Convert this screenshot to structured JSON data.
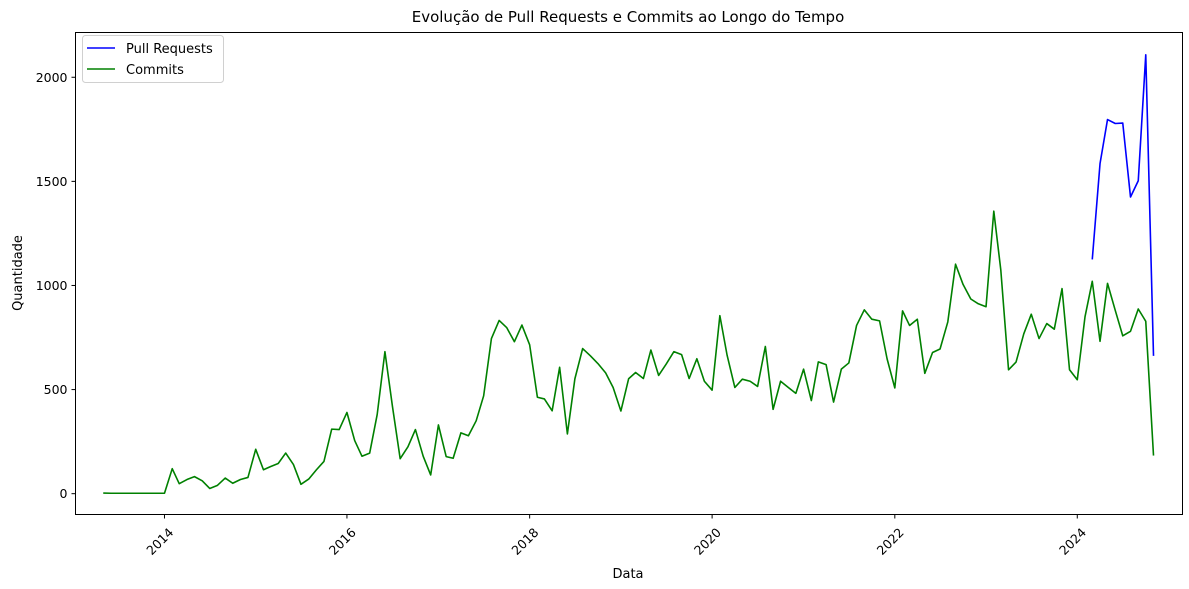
{
  "chart_data": {
    "type": "line",
    "title": "Evolução de Pull Requests e Commits ao Longo do Tempo",
    "xlabel": "Data",
    "ylabel": "Quantidade",
    "x_axis": {
      "type": "date",
      "range": [
        "2013-01-10",
        "2025-02-25"
      ],
      "ticks": [
        "2014-01-01",
        "2016-01-01",
        "2018-01-01",
        "2020-01-01",
        "2022-01-01",
        "2024-01-01"
      ],
      "tick_labels": [
        "2014",
        "2016",
        "2018",
        "2020",
        "2022",
        "2024"
      ],
      "tick_rotation": 45
    },
    "y_axis": {
      "range": [
        -100,
        2215
      ],
      "ticks": [
        0,
        500,
        1000,
        1500,
        2000
      ],
      "tick_labels": [
        "0",
        "500",
        "1000",
        "1500",
        "2000"
      ]
    },
    "grid": false,
    "legend": {
      "position": "top-left"
    },
    "series": [
      {
        "name": "Pull Requests",
        "color": "#0000ff",
        "points": [
          [
            "2024-03-01",
            1125
          ],
          [
            "2024-04-01",
            1585
          ],
          [
            "2024-05-01",
            1797
          ],
          [
            "2024-06-01",
            1778
          ],
          [
            "2024-07-01",
            1780
          ],
          [
            "2024-08-01",
            1425
          ],
          [
            "2024-09-01",
            1503
          ],
          [
            "2024-10-01",
            2108
          ],
          [
            "2024-11-01",
            662
          ]
        ]
      },
      {
        "name": "Commits",
        "color": "#008000",
        "points": [
          [
            "2013-05-01",
            3
          ],
          [
            "2013-06-01",
            2
          ],
          [
            "2013-07-01",
            2
          ],
          [
            "2013-08-01",
            2
          ],
          [
            "2013-09-01",
            2
          ],
          [
            "2013-10-01",
            2
          ],
          [
            "2013-11-01",
            2
          ],
          [
            "2013-12-01",
            2
          ],
          [
            "2014-01-01",
            2
          ],
          [
            "2014-02-01",
            120
          ],
          [
            "2014-03-01",
            48
          ],
          [
            "2014-04-01",
            68
          ],
          [
            "2014-05-01",
            82
          ],
          [
            "2014-06-01",
            62
          ],
          [
            "2014-07-01",
            25
          ],
          [
            "2014-08-01",
            40
          ],
          [
            "2014-09-01",
            75
          ],
          [
            "2014-10-01",
            50
          ],
          [
            "2014-11-01",
            68
          ],
          [
            "2014-12-01",
            78
          ],
          [
            "2015-01-01",
            213
          ],
          [
            "2015-02-01",
            115
          ],
          [
            "2015-03-01",
            130
          ],
          [
            "2015-04-01",
            145
          ],
          [
            "2015-05-01",
            195
          ],
          [
            "2015-06-01",
            140
          ],
          [
            "2015-07-01",
            45
          ],
          [
            "2015-08-01",
            70
          ],
          [
            "2015-09-01",
            115
          ],
          [
            "2015-10-01",
            155
          ],
          [
            "2015-11-01",
            310
          ],
          [
            "2015-12-01",
            308
          ],
          [
            "2016-01-01",
            390
          ],
          [
            "2016-02-01",
            255
          ],
          [
            "2016-03-01",
            180
          ],
          [
            "2016-04-01",
            195
          ],
          [
            "2016-05-01",
            380
          ],
          [
            "2016-06-01",
            682
          ],
          [
            "2016-07-01",
            420
          ],
          [
            "2016-08-01",
            168
          ],
          [
            "2016-09-01",
            225
          ],
          [
            "2016-10-01",
            308
          ],
          [
            "2016-11-01",
            180
          ],
          [
            "2016-12-01",
            90
          ],
          [
            "2017-01-01",
            330
          ],
          [
            "2017-02-01",
            178
          ],
          [
            "2017-03-01",
            170
          ],
          [
            "2017-04-01",
            292
          ],
          [
            "2017-05-01",
            278
          ],
          [
            "2017-06-01",
            350
          ],
          [
            "2017-07-01",
            470
          ],
          [
            "2017-08-01",
            745
          ],
          [
            "2017-09-01",
            832
          ],
          [
            "2017-10-01",
            798
          ],
          [
            "2017-11-01",
            730
          ],
          [
            "2017-12-01",
            810
          ],
          [
            "2018-01-01",
            715
          ],
          [
            "2018-02-01",
            463
          ],
          [
            "2018-03-01",
            455
          ],
          [
            "2018-04-01",
            398
          ],
          [
            "2018-05-01",
            607
          ],
          [
            "2018-06-01",
            287
          ],
          [
            "2018-07-01",
            552
          ],
          [
            "2018-08-01",
            697
          ],
          [
            "2018-09-01",
            662
          ],
          [
            "2018-10-01",
            625
          ],
          [
            "2018-11-01",
            580
          ],
          [
            "2018-12-01",
            510
          ],
          [
            "2019-01-01",
            397
          ],
          [
            "2019-02-01",
            552
          ],
          [
            "2019-03-01",
            582
          ],
          [
            "2019-04-01",
            553
          ],
          [
            "2019-05-01",
            690
          ],
          [
            "2019-06-01",
            568
          ],
          [
            "2019-07-01",
            622
          ],
          [
            "2019-08-01",
            682
          ],
          [
            "2019-09-01",
            668
          ],
          [
            "2019-10-01",
            553
          ],
          [
            "2019-11-01",
            648
          ],
          [
            "2019-12-01",
            540
          ],
          [
            "2020-01-01",
            497
          ],
          [
            "2020-02-01",
            855
          ],
          [
            "2020-03-01",
            665
          ],
          [
            "2020-04-01",
            510
          ],
          [
            "2020-05-01",
            550
          ],
          [
            "2020-06-01",
            540
          ],
          [
            "2020-07-01",
            515
          ],
          [
            "2020-08-01",
            707
          ],
          [
            "2020-09-01",
            405
          ],
          [
            "2020-10-01",
            540
          ],
          [
            "2020-11-01",
            510
          ],
          [
            "2020-12-01",
            482
          ],
          [
            "2021-01-01",
            598
          ],
          [
            "2021-02-01",
            447
          ],
          [
            "2021-03-01",
            633
          ],
          [
            "2021-04-01",
            620
          ],
          [
            "2021-05-01",
            440
          ],
          [
            "2021-06-01",
            598
          ],
          [
            "2021-07-01",
            628
          ],
          [
            "2021-08-01",
            808
          ],
          [
            "2021-09-01",
            883
          ],
          [
            "2021-10-01",
            838
          ],
          [
            "2021-11-01",
            830
          ],
          [
            "2021-12-01",
            648
          ],
          [
            "2022-01-01",
            508
          ],
          [
            "2022-02-01",
            878
          ],
          [
            "2022-03-01",
            808
          ],
          [
            "2022-04-01",
            838
          ],
          [
            "2022-05-01",
            578
          ],
          [
            "2022-06-01",
            678
          ],
          [
            "2022-07-01",
            695
          ],
          [
            "2022-08-01",
            825
          ],
          [
            "2022-09-01",
            1102
          ],
          [
            "2022-10-01",
            1005
          ],
          [
            "2022-11-01",
            935
          ],
          [
            "2022-12-01",
            912
          ],
          [
            "2023-01-01",
            898
          ],
          [
            "2023-02-01",
            1357
          ],
          [
            "2023-03-01",
            1075
          ],
          [
            "2023-04-01",
            595
          ],
          [
            "2023-05-01",
            632
          ],
          [
            "2023-06-01",
            768
          ],
          [
            "2023-07-01",
            862
          ],
          [
            "2023-08-01",
            745
          ],
          [
            "2023-09-01",
            817
          ],
          [
            "2023-10-01",
            790
          ],
          [
            "2023-11-01",
            985
          ],
          [
            "2023-12-01",
            595
          ],
          [
            "2024-01-01",
            547
          ],
          [
            "2024-02-01",
            850
          ],
          [
            "2024-03-01",
            1020
          ],
          [
            "2024-04-01",
            732
          ],
          [
            "2024-05-01",
            1010
          ],
          [
            "2024-06-01",
            880
          ],
          [
            "2024-07-01",
            758
          ],
          [
            "2024-08-01",
            780
          ],
          [
            "2024-09-01",
            887
          ],
          [
            "2024-10-01",
            828
          ],
          [
            "2024-11-01",
            183
          ]
        ]
      }
    ]
  }
}
